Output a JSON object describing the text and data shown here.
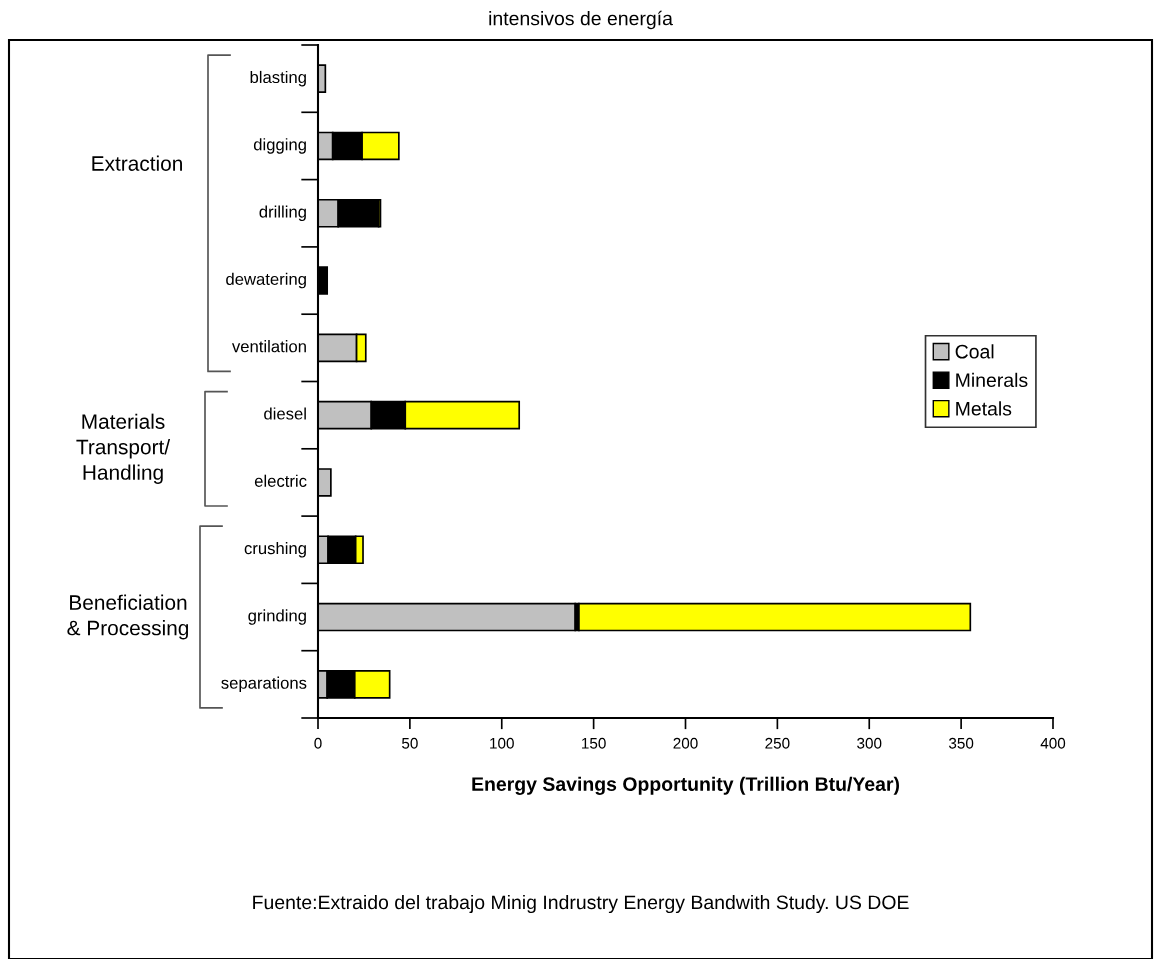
{
  "chart_data": {
    "type": "bar",
    "orientation": "horizontal",
    "stacked": true,
    "title": "intensivos de energía",
    "xlabel": "Energy Savings Opportunity (Trillion Btu/Year)",
    "categories": [
      "blasting",
      "digging",
      "drilling",
      "dewatering",
      "ventilation",
      "diesel",
      "electric",
      "crushing",
      "grinding",
      "separations"
    ],
    "series": [
      {
        "name": "Coal",
        "color": "#c0c0c0",
        "values": [
          4,
          8,
          11,
          0,
          21,
          29,
          7,
          5.5,
          140,
          5
        ]
      },
      {
        "name": "Minerals",
        "color": "#000000",
        "values": [
          0,
          16,
          22,
          5,
          0,
          18.5,
          0,
          15,
          2,
          15
        ]
      },
      {
        "name": "Metals",
        "color": "#ffff00",
        "values": [
          0,
          20,
          1,
          0,
          5,
          62,
          0,
          4,
          213,
          19
        ]
      }
    ],
    "xlim": [
      0,
      400
    ],
    "xticks": [
      0,
      50,
      100,
      150,
      200,
      250,
      300,
      350,
      400
    ],
    "grid": false,
    "legend": "right",
    "annotations": [
      "Extraction",
      "Materials\nTransport/\nHandling",
      "Beneficiation\n& Processing",
      "Fuente:Extraido del trabajo Minig Indrustry Energy Bandwith Study. US DOE"
    ]
  }
}
